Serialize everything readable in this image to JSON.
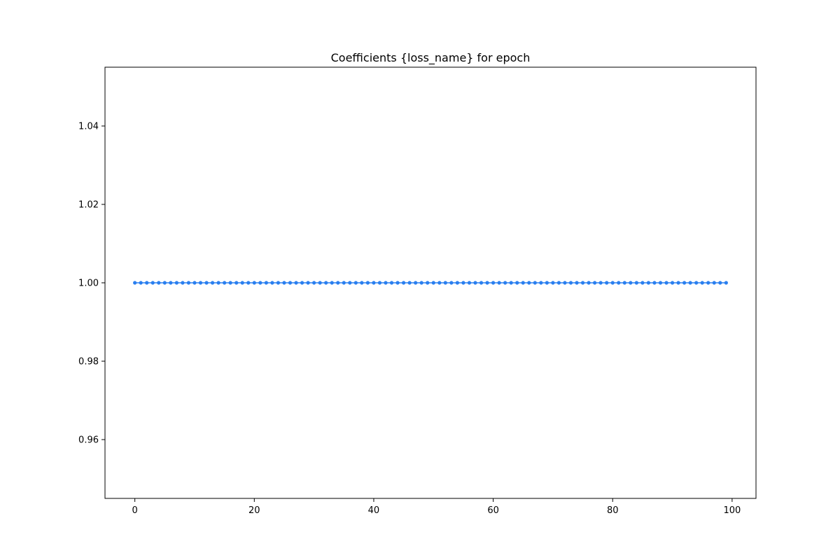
{
  "chart_data": {
    "type": "line",
    "title": "Coefficients {loss_name} for epoch",
    "xlabel": "",
    "ylabel": "",
    "xlim": [
      -5,
      104
    ],
    "ylim": [
      0.945,
      1.055
    ],
    "x_ticks": [
      0,
      20,
      40,
      60,
      80,
      100
    ],
    "x_tick_labels": [
      "0",
      "20",
      "40",
      "60",
      "80",
      "100"
    ],
    "y_ticks": [
      0.96,
      0.98,
      1.0,
      1.02,
      1.04
    ],
    "y_tick_labels": [
      "0.96",
      "0.98",
      "1.00",
      "1.02",
      "1.04"
    ],
    "grid": false,
    "legend": "none",
    "series": [
      {
        "color": "#2a7fef",
        "marker": "circle",
        "x_start": 0,
        "x_end": 99,
        "x_step": 1,
        "values": [
          1,
          1,
          1,
          1,
          1,
          1,
          1,
          1,
          1,
          1,
          1,
          1,
          1,
          1,
          1,
          1,
          1,
          1,
          1,
          1,
          1,
          1,
          1,
          1,
          1,
          1,
          1,
          1,
          1,
          1,
          1,
          1,
          1,
          1,
          1,
          1,
          1,
          1,
          1,
          1,
          1,
          1,
          1,
          1,
          1,
          1,
          1,
          1,
          1,
          1,
          1,
          1,
          1,
          1,
          1,
          1,
          1,
          1,
          1,
          1,
          1,
          1,
          1,
          1,
          1,
          1,
          1,
          1,
          1,
          1,
          1,
          1,
          1,
          1,
          1,
          1,
          1,
          1,
          1,
          1,
          1,
          1,
          1,
          1,
          1,
          1,
          1,
          1,
          1,
          1,
          1,
          1,
          1,
          1,
          1,
          1,
          1,
          1,
          1,
          1
        ]
      }
    ]
  }
}
